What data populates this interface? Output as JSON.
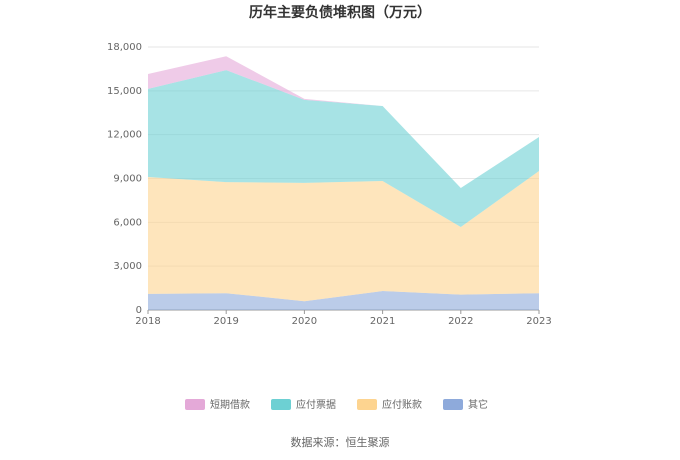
{
  "chart_data": {
    "type": "stacked_area",
    "title": "历年主要负债堆积图（万元）",
    "categories": [
      "2018",
      "2019",
      "2020",
      "2021",
      "2022",
      "2023"
    ],
    "series": [
      {
        "name": "短期借款",
        "color": "#e4a9d8",
        "values": [
          1020,
          950,
          70,
          0,
          0,
          0
        ]
      },
      {
        "name": "应付票据",
        "color": "#6dd0d3",
        "values": [
          6030,
          7670,
          5680,
          5130,
          2670,
          2330
        ]
      },
      {
        "name": "应付账款",
        "color": "#fdd490",
        "values": [
          8000,
          7600,
          8100,
          7530,
          4630,
          8360
        ]
      },
      {
        "name": "其它",
        "color": "#8eaadb",
        "values": [
          1100,
          1150,
          600,
          1300,
          1050,
          1150
        ]
      }
    ],
    "ylim": [
      0,
      18000
    ],
    "yticks": [
      0,
      {
        "value": 3000,
        "label": "3,000"
      },
      {
        "value": 6000,
        "label": "6,000"
      },
      {
        "value": 9000,
        "label": "9,000"
      },
      {
        "value": 12000,
        "label": "12,000"
      },
      {
        "value": 15000,
        "label": "15,000"
      },
      {
        "value": 18000,
        "label": "18,000"
      }
    ],
    "grid": true,
    "source": "数据来源：恒生聚源"
  }
}
